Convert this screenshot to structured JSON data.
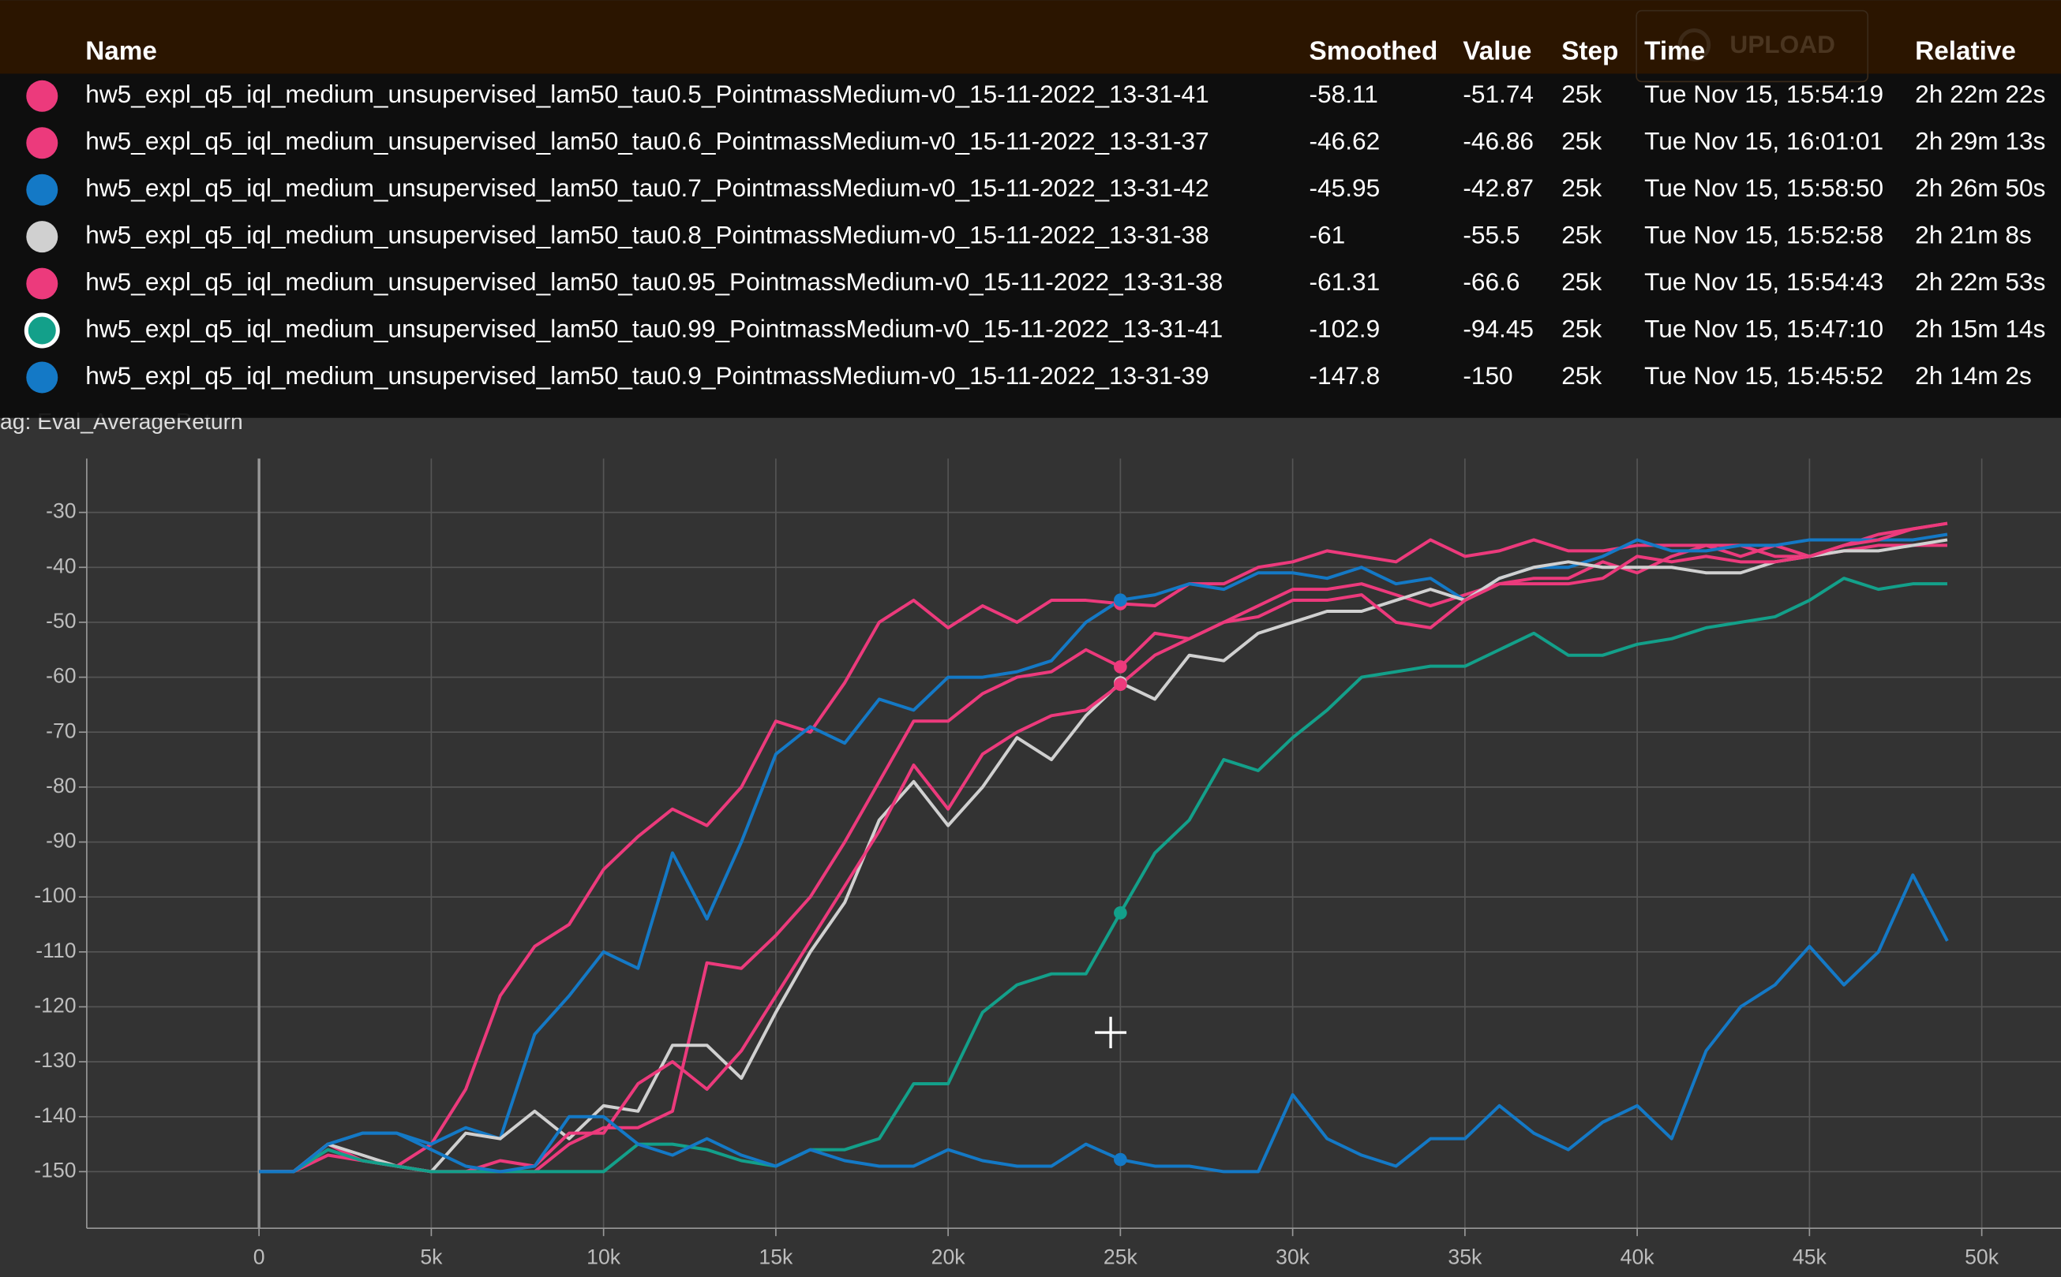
{
  "tooltip": {
    "columns": [
      "Name",
      "Smoothed",
      "Value",
      "Step",
      "Time",
      "Relative"
    ],
    "rows": [
      [
        "hw5_expl_q5_iql_medium_unsupervised_lam50_tau0.5_PointmassMedium-v0_15-11-2022_13-31-41",
        "-58.11",
        "-51.74",
        "25k",
        "Tue Nov 15, 15:54:19",
        "2h 22m 22s"
      ],
      [
        "hw5_expl_q5_iql_medium_unsupervised_lam50_tau0.6_PointmassMedium-v0_15-11-2022_13-31-37",
        "-46.62",
        "-46.86",
        "25k",
        "Tue Nov 15, 16:01:01",
        "2h 29m 13s"
      ],
      [
        "hw5_expl_q5_iql_medium_unsupervised_lam50_tau0.7_PointmassMedium-v0_15-11-2022_13-31-42",
        "-45.95",
        "-42.87",
        "25k",
        "Tue Nov 15, 15:58:50",
        "2h 26m 50s"
      ],
      [
        "hw5_expl_q5_iql_medium_unsupervised_lam50_tau0.8_PointmassMedium-v0_15-11-2022_13-31-38",
        "-61",
        "-55.5",
        "25k",
        "Tue Nov 15, 15:52:58",
        "2h 21m 8s"
      ],
      [
        "hw5_expl_q5_iql_medium_unsupervised_lam50_tau0.95_PointmassMedium-v0_15-11-2022_13-31-38",
        "-61.31",
        "-66.6",
        "25k",
        "Tue Nov 15, 15:54:43",
        "2h 22m 53s"
      ],
      [
        "hw5_expl_q5_iql_medium_unsupervised_lam50_tau0.99_PointmassMedium-v0_15-11-2022_13-31-41",
        "-102.9",
        "-94.45",
        "25k",
        "Tue Nov 15, 15:47:10",
        "2h 15m 14s"
      ],
      [
        "hw5_expl_q5_iql_medium_unsupervised_lam50_tau0.9_PointmassMedium-v0_15-11-2022_13-31-39",
        "-147.8",
        "-150",
        "25k",
        "Tue Nov 15, 15:45:52",
        "2h 14m 2s"
      ]
    ],
    "button": "UPLOAD"
  },
  "chart_data": {
    "type": "line",
    "subtitle": "ag: Eval_AverageReturn",
    "x": [
      0,
      1000,
      2000,
      3000,
      4000,
      5000,
      6000,
      7000,
      8000,
      9000,
      10000,
      11000,
      12000,
      13000,
      14000,
      15000,
      16000,
      17000,
      18000,
      19000,
      20000,
      21000,
      22000,
      23000,
      24000,
      25000,
      26000,
      27000,
      28000,
      29000,
      30000,
      31000,
      32000,
      33000,
      34000,
      35000,
      36000,
      37000,
      38000,
      39000,
      40000,
      41000,
      42000,
      43000,
      44000,
      45000,
      46000,
      47000,
      48000,
      49000
    ],
    "xlim": [
      -5000,
      52300
    ],
    "ylim": [
      -160.3,
      -20.2
    ],
    "xticks": [
      0,
      {
        "value": 5000,
        "label": "5k"
      },
      {
        "value": 10000,
        "label": "10k"
      },
      {
        "value": 15000,
        "label": "15k"
      },
      {
        "value": 20000,
        "label": "20k"
      },
      {
        "value": 25000,
        "label": "25k"
      },
      {
        "value": 30000,
        "label": "30k"
      },
      {
        "value": 35000,
        "label": "35k"
      },
      {
        "value": 40000,
        "label": "40k"
      },
      {
        "value": 45000,
        "label": "45k"
      },
      {
        "value": 50000,
        "label": "50k"
      }
    ],
    "yticks": [
      -30,
      -40,
      -50,
      -60,
      -70,
      -80,
      -90,
      -100,
      -110,
      -120,
      -130,
      -140,
      -150
    ],
    "grid": true,
    "series": [
      {
        "name": "hw5_expl_q5_iql_medium_unsupervised_lam50_tau0.5_PointmassMedium-v0_15-11-2022_13-31-41",
        "color": "#ec3a7c",
        "values": [
          -150,
          -150,
          -147,
          -148,
          -149,
          -150,
          -150,
          -150,
          -150,
          -145,
          -142,
          -142,
          -139,
          -112,
          -113,
          -107,
          -100,
          -90,
          -79,
          -68,
          -68,
          -63,
          -60,
          -59,
          -55,
          -58.11,
          -52,
          -53,
          -50,
          -47,
          -44,
          -44,
          -43,
          -45,
          -47,
          -45,
          -43,
          -42,
          -42,
          -39,
          -41,
          -38,
          -36,
          -36,
          -38,
          -38,
          -37,
          -36,
          -36,
          -36
        ]
      },
      {
        "name": "hw5_expl_q5_iql_medium_unsupervised_lam50_tau0.6_PointmassMedium-v0_15-11-2022_13-31-37",
        "color": "#ec3a7c",
        "values": [
          -150,
          -150,
          -145,
          -148,
          -149,
          -145,
          -135,
          -118,
          -109,
          -105,
          -95,
          -89,
          -84,
          -87,
          -80,
          -68,
          -70,
          -61,
          -50,
          -46,
          -51,
          -47,
          -50,
          -46,
          -46,
          -46.62,
          -47,
          -43,
          -43,
          -40,
          -39,
          -37,
          -38,
          -39,
          -35,
          -38,
          -37,
          -35,
          -37,
          -37,
          -36,
          -36,
          -36,
          -38,
          -36,
          -38,
          -36,
          -34,
          -33,
          -32
        ]
      },
      {
        "name": "hw5_expl_q5_iql_medium_unsupervised_lam50_tau0.7_PointmassMedium-v0_15-11-2022_13-31-42",
        "color": "#1479c6",
        "values": [
          -150,
          -150,
          -145,
          -143,
          -143,
          -145,
          -142,
          -144,
          -125,
          -118,
          -110,
          -113,
          -92,
          -104,
          -90,
          -74,
          -69,
          -72,
          -64,
          -66,
          -60,
          -60,
          -59,
          -57,
          -50,
          -45.95,
          -45,
          -43,
          -44,
          -41,
          -41,
          -42,
          -40,
          -43,
          -42,
          -46,
          -42,
          -40,
          -40,
          -38,
          -35,
          -37,
          -37,
          -36,
          -36,
          -35,
          -35,
          -35,
          -35,
          -34
        ]
      },
      {
        "name": "hw5_expl_q5_iql_medium_unsupervised_lam50_tau0.8_PointmassMedium-v0_15-11-2022_13-31-38",
        "color": "#d0d0d0",
        "values": [
          -150,
          -150,
          -145,
          -147,
          -149,
          -150,
          -143,
          -144,
          -139,
          -144,
          -138,
          -139,
          -127,
          -127,
          -133,
          -121,
          -110,
          -101,
          -86,
          -79,
          -87,
          -80,
          -71,
          -75,
          -67,
          -61,
          -64,
          -56,
          -57,
          -52,
          -50,
          -48,
          -48,
          -46,
          -44,
          -46,
          -42,
          -40,
          -39,
          -40,
          -40,
          -40,
          -41,
          -41,
          -39,
          -38,
          -37,
          -37,
          -36,
          -35
        ]
      },
      {
        "name": "hw5_expl_q5_iql_medium_unsupervised_lam50_tau0.95_PointmassMedium-v0_15-11-2022_13-31-38",
        "color": "#ec3a7c",
        "values": [
          -150,
          -150,
          -146,
          -148,
          -149,
          -150,
          -150,
          -148,
          -149,
          -143,
          -143,
          -134,
          -130,
          -135,
          -128,
          -118,
          -108,
          -98,
          -88,
          -76,
          -84,
          -74,
          -70,
          -67,
          -66,
          -61.31,
          -56,
          -53,
          -50,
          -49,
          -46,
          -46,
          -45,
          -50,
          -51,
          -46,
          -43,
          -43,
          -43,
          -42,
          -38,
          -39,
          -38,
          -39,
          -39,
          -38,
          -36,
          -35,
          -33,
          -32
        ]
      },
      {
        "name": "hw5_expl_q5_iql_medium_unsupervised_lam50_tau0.99_PointmassMedium-v0_15-11-2022_13-31-41",
        "color": "#13a08a",
        "values": [
          -150,
          -150,
          -146,
          -148,
          -149,
          -150,
          -150,
          -150,
          -150,
          -150,
          -150,
          -145,
          -145,
          -146,
          -148,
          -149,
          -146,
          -146,
          -144,
          -134,
          -134,
          -121,
          -116,
          -114,
          -114,
          -102.9,
          -92,
          -86,
          -75,
          -77,
          -71,
          -66,
          -60,
          -59,
          -58,
          -58,
          -55,
          -52,
          -56,
          -56,
          -54,
          -53,
          -51,
          -50,
          -49,
          -46,
          -42,
          -44,
          -43,
          -43
        ]
      },
      {
        "name": "hw5_expl_q5_iql_medium_unsupervised_lam50_tau0.9_PointmassMedium-v0_15-11-2022_13-31-39",
        "color": "#1479c6",
        "values": [
          -150,
          -150,
          -145,
          -143,
          -143,
          -146,
          -149,
          -150,
          -149,
          -140,
          -140,
          -145,
          -147,
          -144,
          -147,
          -149,
          -146,
          -148,
          -149,
          -149,
          -146,
          -148,
          -149,
          -149,
          -145,
          -147.8,
          -149,
          -149,
          -150,
          -150,
          -136,
          -144,
          -147,
          -149,
          -144,
          -144,
          -138,
          -143,
          -146,
          -141,
          -138,
          -144,
          -128,
          -120,
          -116,
          -109,
          -116,
          -110,
          -96,
          -108
        ]
      }
    ]
  }
}
